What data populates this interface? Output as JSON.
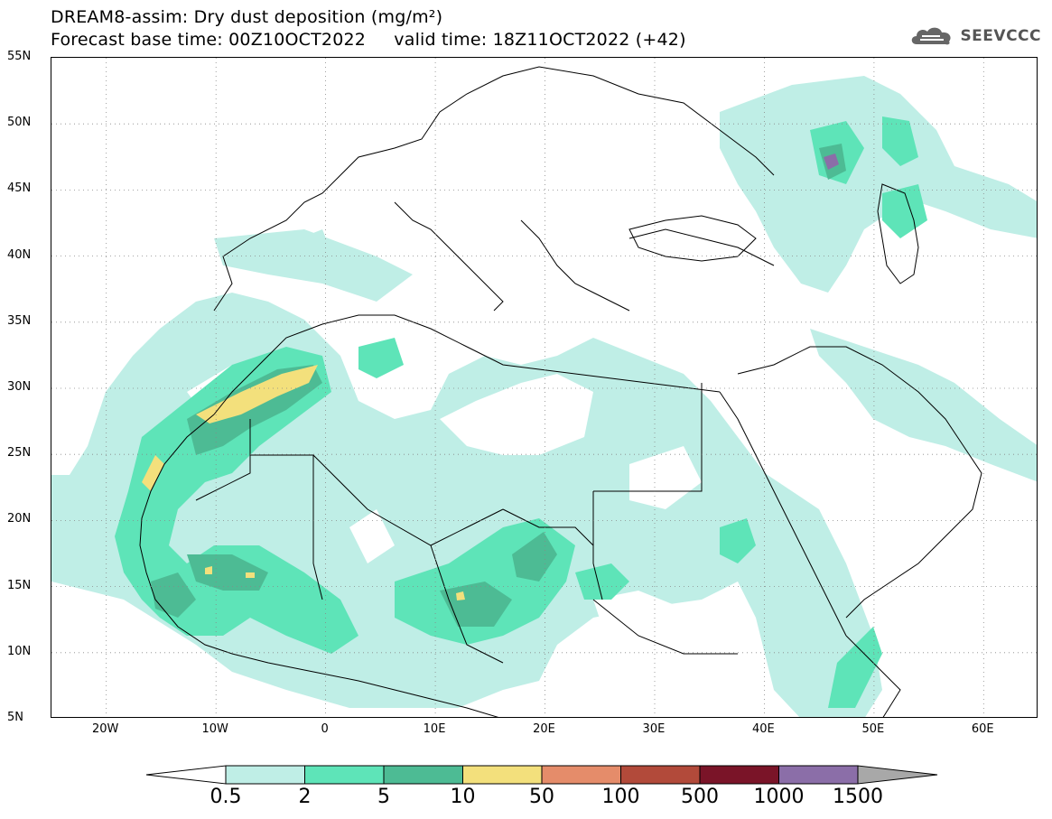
{
  "title": {
    "line1": "DREAM8-assim: Dry dust deposition (mg/m²)",
    "line2": "Forecast base time: 00Z10OCT2022     valid time: 18Z11OCT2022 (+42)"
  },
  "logo": {
    "text": "SEEVCCC",
    "icon": "cloud-logo-icon"
  },
  "axes": {
    "lat_ticks": [
      "55N",
      "50N",
      "45N",
      "40N",
      "35N",
      "30N",
      "25N",
      "20N",
      "15N",
      "10N",
      "5N"
    ],
    "lon_ticks": [
      "20W",
      "10W",
      "0",
      "10E",
      "20E",
      "30E",
      "40E",
      "50E",
      "60E"
    ],
    "lat_range": [
      5,
      55
    ],
    "lon_range": [
      -25,
      65
    ],
    "grid": "dotted"
  },
  "legend": {
    "levels": [
      "0.5",
      "2",
      "5",
      "10",
      "50",
      "100",
      "500",
      "1000",
      "1500"
    ],
    "colors": [
      "#ffffff",
      "#bfeee6",
      "#5ee4b8",
      "#4dbb94",
      "#f3e07c",
      "#e58c6a",
      "#b24a3a",
      "#7a1428",
      "#8b6ea8",
      "#a8a8a8"
    ]
  },
  "colors": {
    "land_line": "#000000",
    "c1": "#bfeee6",
    "c2": "#5ee4b8",
    "c3": "#4dbb94",
    "c4": "#f3e07c",
    "c8": "#8b6ea8"
  }
}
